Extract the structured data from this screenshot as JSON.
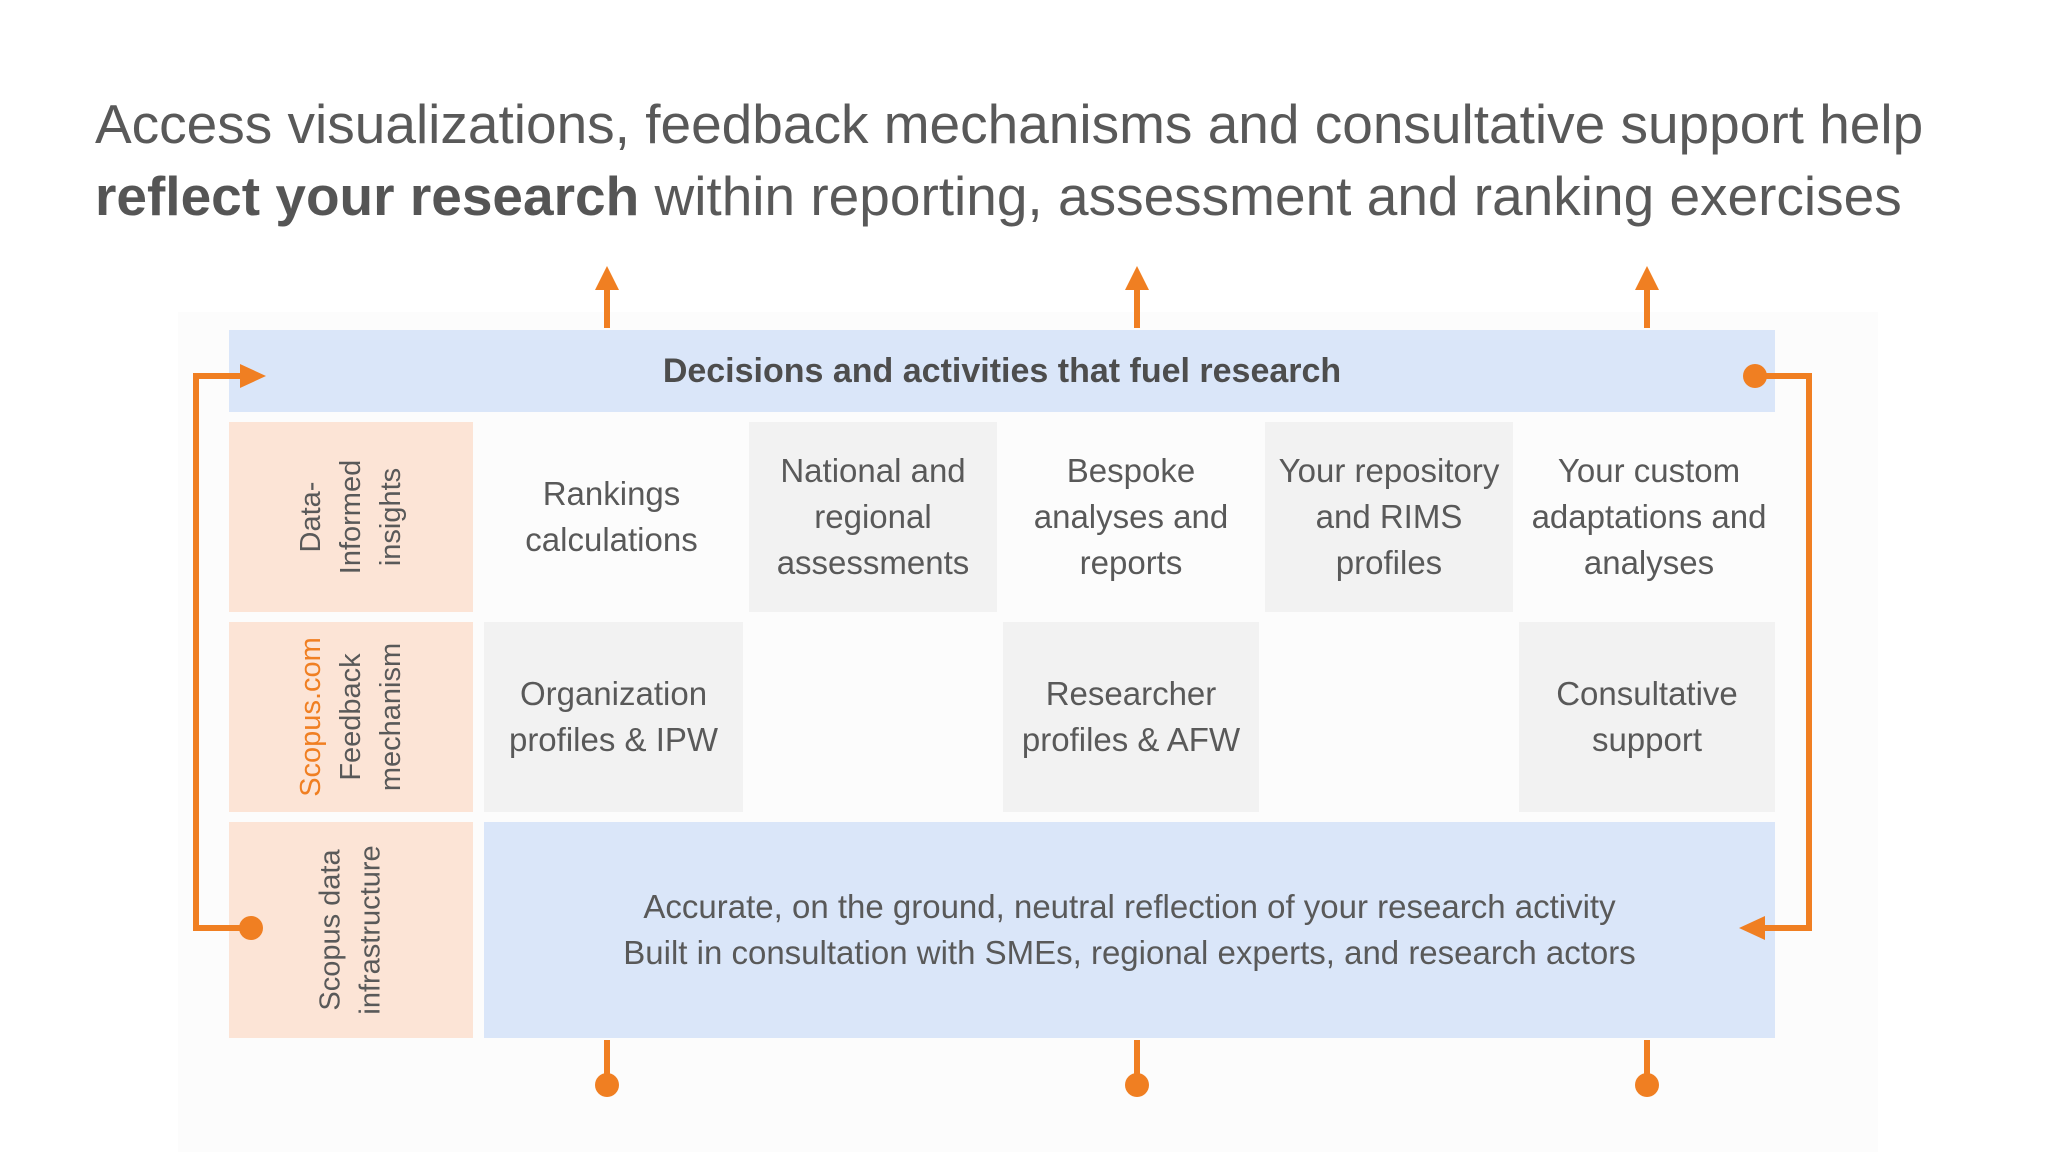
{
  "headline": {
    "line1": "Access visualizations, feedback mechanisms and consultative support help",
    "bold": "reflect your research",
    "line2_rest": " within reporting, assessment and ranking exercises"
  },
  "banner": "Decisions and activities that fuel research",
  "rows": {
    "insights": {
      "line1": "Data-",
      "line2": "Informed",
      "line3": "insights"
    },
    "feedback": {
      "line1": "Scopus.com",
      "line2": "Feedback",
      "line3": "mechanism"
    },
    "infrastructure": {
      "line1": "Scopus data",
      "line2": "infrastructure"
    }
  },
  "insights_cells": [
    "Rankings calculations",
    "National and regional assessments",
    "Bespoke analyses and reports",
    "Your repository and RIMS profiles",
    "Your custom adaptations and analyses"
  ],
  "feedback_cells": [
    "Organization profiles & IPW",
    "Researcher profiles & AFW",
    "Consultative support"
  ],
  "infrastructure_text": {
    "line1": "Accurate, on the ground, neutral reflection of your research activity",
    "line2": "Built in consultation with SMEs, regional experts, and research actors"
  },
  "colors": {
    "accent_orange": "#f07f22",
    "banner_blue": "#dae6f9",
    "label_peach": "#fce4d6",
    "cell_grey": "#f2f2f2",
    "text_grey": "#595959"
  }
}
